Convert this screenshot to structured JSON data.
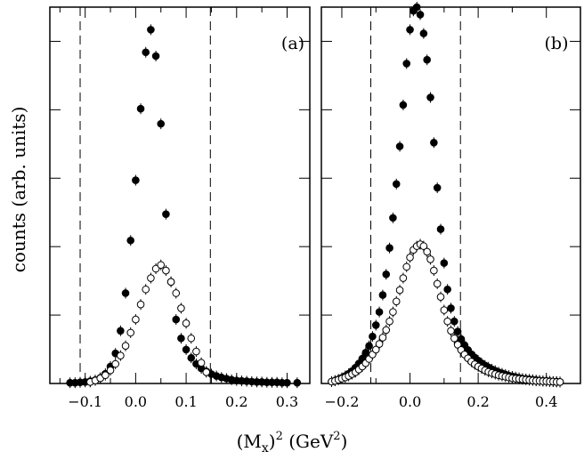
{
  "figure": {
    "ylabel": "counts (arb. units)",
    "xlabel_main": "(M",
    "xlabel_sub": "x",
    "xlabel_paren": ")",
    "xlabel_sup": "2",
    "xlabel_unit_open": " (GeV",
    "xlabel_unit_sup": "2",
    "xlabel_unit_close": ")"
  },
  "chart_data": [
    {
      "type": "scatter",
      "panel_label": "(a)",
      "xlim": [
        -0.17,
        0.345
      ],
      "ylim": [
        0,
        1.0
      ],
      "x_ticks": [
        -0.1,
        0.0,
        0.1,
        0.2,
        0.3
      ],
      "x_tick_labels": [
        "−0.1",
        "0.0",
        "0.1",
        "0.2",
        "0.3"
      ],
      "cut_lines_x": [
        -0.11,
        0.148
      ],
      "series": [
        {
          "marker": "filled",
          "x": [
            -0.13,
            -0.12,
            -0.11,
            -0.1,
            -0.09,
            -0.08,
            -0.07,
            -0.06,
            -0.05,
            -0.04,
            -0.03,
            -0.02,
            -0.01,
            0.0,
            0.01,
            0.02,
            0.03,
            0.04,
            0.05,
            0.06,
            0.07,
            0.08,
            0.09,
            0.1,
            0.11,
            0.12,
            0.13,
            0.14,
            0.15,
            0.16,
            0.17,
            0.18,
            0.19,
            0.2,
            0.21,
            0.22,
            0.23,
            0.24,
            0.25,
            0.26,
            0.27,
            0.28,
            0.29,
            0.3,
            0.32
          ],
          "y": [
            0.002,
            0.002,
            0.003,
            0.004,
            0.006,
            0.009,
            0.015,
            0.026,
            0.045,
            0.08,
            0.14,
            0.24,
            0.38,
            0.54,
            0.73,
            0.88,
            0.94,
            0.87,
            0.69,
            0.45,
            0.27,
            0.17,
            0.12,
            0.09,
            0.068,
            0.052,
            0.04,
            0.032,
            0.025,
            0.02,
            0.016,
            0.013,
            0.01,
            0.008,
            0.007,
            0.006,
            0.005,
            0.004,
            0.004,
            0.003,
            0.003,
            0.003,
            0.002,
            0.002,
            0.002
          ]
        },
        {
          "marker": "open",
          "x": [
            -0.09,
            -0.08,
            -0.07,
            -0.06,
            -0.05,
            -0.04,
            -0.03,
            -0.02,
            -0.01,
            0.0,
            0.01,
            0.02,
            0.03,
            0.04,
            0.05,
            0.06,
            0.07,
            0.08,
            0.09,
            0.1,
            0.11,
            0.12,
            0.13,
            0.14
          ],
          "y": [
            0.004,
            0.008,
            0.014,
            0.022,
            0.035,
            0.052,
            0.074,
            0.1,
            0.135,
            0.17,
            0.21,
            0.25,
            0.28,
            0.305,
            0.315,
            0.3,
            0.27,
            0.24,
            0.2,
            0.16,
            0.12,
            0.085,
            0.055,
            0.03
          ]
        }
      ]
    },
    {
      "type": "scatter",
      "panel_label": "(b)",
      "xlim": [
        -0.26,
        0.5
      ],
      "ylim": [
        0,
        1.0
      ],
      "x_ticks": [
        -0.2,
        0.0,
        0.2,
        0.4
      ],
      "x_tick_labels": [
        "−0.2",
        "0.0",
        "0.2",
        "0.4"
      ],
      "cut_lines_x": [
        -0.115,
        0.148
      ],
      "series": [
        {
          "marker": "filled",
          "x": [
            -0.23,
            -0.22,
            -0.21,
            -0.2,
            -0.19,
            -0.18,
            -0.17,
            -0.16,
            -0.15,
            -0.14,
            -0.13,
            -0.12,
            -0.11,
            -0.1,
            -0.09,
            -0.08,
            -0.07,
            -0.06,
            -0.05,
            -0.04,
            -0.03,
            -0.02,
            -0.01,
            0.0,
            0.01,
            0.02,
            0.03,
            0.04,
            0.05,
            0.06,
            0.07,
            0.08,
            0.09,
            0.1,
            0.11,
            0.12,
            0.13,
            0.14,
            0.15,
            0.16,
            0.17,
            0.18,
            0.19,
            0.2,
            0.21,
            0.22,
            0.23,
            0.24,
            0.25,
            0.26,
            0.27,
            0.28,
            0.29,
            0.3,
            0.31,
            0.32,
            0.33,
            0.34,
            0.35,
            0.36,
            0.37,
            0.38,
            0.39,
            0.4,
            0.41,
            0.42,
            0.43,
            0.44
          ],
          "y": [
            0.005,
            0.008,
            0.011,
            0.015,
            0.02,
            0.026,
            0.033,
            0.042,
            0.053,
            0.066,
            0.082,
            0.1,
            0.125,
            0.155,
            0.19,
            0.235,
            0.29,
            0.36,
            0.44,
            0.53,
            0.63,
            0.74,
            0.85,
            0.94,
            0.99,
            1.0,
            0.98,
            0.93,
            0.86,
            0.76,
            0.64,
            0.52,
            0.41,
            0.32,
            0.25,
            0.2,
            0.165,
            0.138,
            0.118,
            0.102,
            0.089,
            0.078,
            0.069,
            0.061,
            0.054,
            0.048,
            0.043,
            0.038,
            0.034,
            0.03,
            0.027,
            0.024,
            0.021,
            0.019,
            0.017,
            0.015,
            0.013,
            0.012,
            0.011,
            0.01,
            0.009,
            0.008,
            0.007,
            0.007,
            0.006,
            0.005,
            0.005,
            0.004
          ]
        },
        {
          "marker": "open",
          "x": [
            -0.23,
            -0.22,
            -0.21,
            -0.2,
            -0.19,
            -0.18,
            -0.17,
            -0.16,
            -0.15,
            -0.14,
            -0.13,
            -0.12,
            -0.11,
            -0.1,
            -0.09,
            -0.08,
            -0.07,
            -0.06,
            -0.05,
            -0.04,
            -0.03,
            -0.02,
            -0.01,
            0.0,
            0.01,
            0.02,
            0.03,
            0.04,
            0.05,
            0.06,
            0.07,
            0.08,
            0.09,
            0.1,
            0.11,
            0.12,
            0.13,
            0.14,
            0.15,
            0.16,
            0.17,
            0.18,
            0.19,
            0.2,
            0.21,
            0.22,
            0.23,
            0.24,
            0.25,
            0.26,
            0.27,
            0.28,
            0.29,
            0.3,
            0.31,
            0.32,
            0.33,
            0.34,
            0.35,
            0.36,
            0.37,
            0.38,
            0.39,
            0.4,
            0.41,
            0.42,
            0.43,
            0.44
          ],
          "y": [
            0.005,
            0.007,
            0.01,
            0.013,
            0.016,
            0.02,
            0.025,
            0.03,
            0.037,
            0.045,
            0.054,
            0.065,
            0.077,
            0.09,
            0.105,
            0.122,
            0.142,
            0.165,
            0.19,
            0.218,
            0.248,
            0.28,
            0.31,
            0.335,
            0.355,
            0.365,
            0.37,
            0.365,
            0.35,
            0.33,
            0.3,
            0.265,
            0.23,
            0.195,
            0.165,
            0.14,
            0.12,
            0.103,
            0.089,
            0.077,
            0.067,
            0.058,
            0.051,
            0.045,
            0.04,
            0.035,
            0.031,
            0.028,
            0.025,
            0.022,
            0.02,
            0.018,
            0.016,
            0.014,
            0.013,
            0.012,
            0.011,
            0.01,
            0.009,
            0.008,
            0.007,
            0.007,
            0.006,
            0.006,
            0.005,
            0.005,
            0.004,
            0.004
          ]
        }
      ]
    }
  ]
}
